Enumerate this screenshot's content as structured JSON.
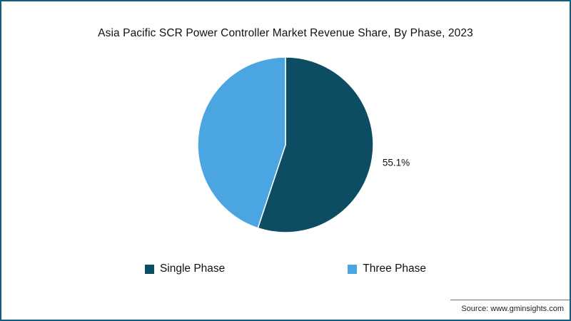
{
  "frame": {
    "border_color": "#115e7e",
    "background": "#ffffff"
  },
  "chart_data": {
    "type": "pie",
    "title": "Asia Pacific SCR Power Controller Market Revenue Share, By Phase, 2023",
    "slices": [
      {
        "name": "Single Phase",
        "value": 55.1,
        "color": "#0d4d63",
        "label": "55.1%"
      },
      {
        "name": "Three Phase",
        "value": 44.9,
        "color": "#4ba5e1",
        "label": ""
      }
    ],
    "start_angle_deg": 0,
    "direction": "clockwise",
    "slice_border_color": "#ffffff",
    "legend_position": "bottom"
  },
  "source": {
    "text": "Source: www.gminsights.com"
  }
}
